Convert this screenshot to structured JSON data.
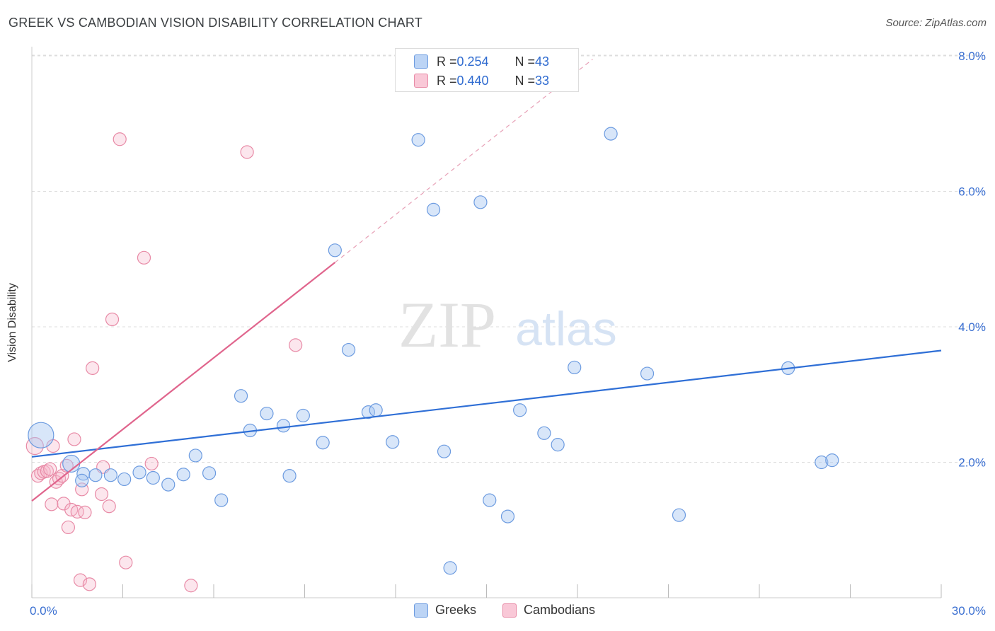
{
  "header": {
    "title": "GREEK VS CAMBODIAN VISION DISABILITY CORRELATION CHART",
    "source": "Source: ZipAtlas.com"
  },
  "watermark": {
    "zip": "ZIP",
    "atlas": "atlas"
  },
  "legend_top": {
    "rows": [
      {
        "r_label": "R = ",
        "r_value": "0.254",
        "n_label": "N = ",
        "n_value": "43"
      },
      {
        "r_label": "R = ",
        "r_value": "0.440",
        "n_label": "N = ",
        "n_value": "33"
      }
    ]
  },
  "legend_bottom": {
    "items": [
      "Greeks",
      "Cambodians"
    ]
  },
  "colors": {
    "greeks_fill": "#a9c8f2",
    "greeks_stroke": "#6c9be0",
    "greeks_line": "#2f6fd6",
    "cambodians_fill": "#f7b8cb",
    "cambodians_stroke": "#e88aa6",
    "cambodians_line": "#e0658d",
    "tick_text": "#3a6fd1",
    "grid": "#dddddd"
  },
  "chart_data": {
    "type": "scatter",
    "title": "GREEK VS CAMBODIAN VISION DISABILITY CORRELATION CHART",
    "xlabel": "",
    "ylabel": "Vision Disability",
    "xlim": [
      0,
      30
    ],
    "ylim": [
      0,
      8.4
    ],
    "x_ticks": [
      0,
      3,
      6,
      9,
      12,
      15,
      18,
      21,
      24,
      27,
      30
    ],
    "x_tick_labels": {
      "0": "0.0%",
      "30": "30.0%"
    },
    "y_ticks": [
      2,
      4,
      6,
      8
    ],
    "y_tick_labels": [
      "2.0%",
      "4.0%",
      "6.0%",
      "8.0%"
    ],
    "grid": true,
    "legend_position": "top-center",
    "series": [
      {
        "name": "Greeks",
        "r": 0.254,
        "n": 43,
        "trend": {
          "x": [
            0,
            30
          ],
          "y": [
            2.08,
            3.65
          ]
        },
        "points": [
          [
            0.3,
            2.4,
            18
          ],
          [
            1.3,
            1.98,
            12
          ],
          [
            1.7,
            1.83,
            9
          ],
          [
            1.65,
            1.73,
            9
          ],
          [
            2.1,
            1.81,
            9
          ],
          [
            2.6,
            1.81,
            9
          ],
          [
            3.05,
            1.75,
            9
          ],
          [
            3.55,
            1.85,
            9
          ],
          [
            4.0,
            1.77,
            9
          ],
          [
            4.5,
            1.67,
            9
          ],
          [
            5.0,
            1.82,
            9
          ],
          [
            5.4,
            2.1,
            9
          ],
          [
            5.85,
            1.84,
            9
          ],
          [
            6.25,
            1.44,
            9
          ],
          [
            6.9,
            2.98,
            9
          ],
          [
            7.2,
            2.47,
            9
          ],
          [
            7.75,
            2.72,
            9
          ],
          [
            8.3,
            2.54,
            9
          ],
          [
            8.5,
            1.8,
            9
          ],
          [
            8.95,
            2.69,
            9
          ],
          [
            9.6,
            2.29,
            9
          ],
          [
            10.0,
            5.13,
            9
          ],
          [
            10.45,
            3.66,
            9
          ],
          [
            11.1,
            2.74,
            9
          ],
          [
            11.35,
            2.77,
            9
          ],
          [
            11.9,
            2.3,
            9
          ],
          [
            12.75,
            6.76,
            9
          ],
          [
            13.25,
            5.73,
            9
          ],
          [
            13.6,
            2.16,
            9
          ],
          [
            13.8,
            0.44,
            9
          ],
          [
            14.8,
            5.84,
            9
          ],
          [
            15.1,
            1.44,
            9
          ],
          [
            15.7,
            1.2,
            9
          ],
          [
            16.1,
            2.77,
            9
          ],
          [
            16.9,
            2.43,
            9
          ],
          [
            17.35,
            2.26,
            9
          ],
          [
            17.9,
            3.4,
            9
          ],
          [
            19.1,
            6.85,
            9
          ],
          [
            20.3,
            3.31,
            9
          ],
          [
            21.35,
            1.22,
            9
          ],
          [
            24.95,
            3.39,
            9
          ],
          [
            26.05,
            2.0,
            9
          ],
          [
            26.4,
            2.03,
            9
          ]
        ]
      },
      {
        "name": "Cambodians",
        "r": 0.44,
        "n": 33,
        "trend": {
          "x": [
            0,
            10
          ],
          "y": [
            1.43,
            4.95
          ],
          "dashed_to": {
            "x": 18.5,
            "y": 7.95
          }
        },
        "points": [
          [
            0.1,
            2.24,
            12
          ],
          [
            0.2,
            1.8,
            9
          ],
          [
            0.3,
            1.84,
            9
          ],
          [
            0.4,
            1.86,
            9
          ],
          [
            0.5,
            1.87,
            9
          ],
          [
            0.6,
            1.9,
            9
          ],
          [
            0.65,
            1.38,
            9
          ],
          [
            0.7,
            2.24,
            9
          ],
          [
            0.8,
            1.71,
            9
          ],
          [
            0.9,
            1.76,
            9
          ],
          [
            1.0,
            1.8,
            9
          ],
          [
            1.05,
            1.39,
            9
          ],
          [
            1.15,
            1.95,
            9
          ],
          [
            1.2,
            1.04,
            9
          ],
          [
            1.3,
            1.3,
            9
          ],
          [
            1.4,
            2.34,
            9
          ],
          [
            1.5,
            1.27,
            9
          ],
          [
            1.6,
            0.26,
            9
          ],
          [
            1.65,
            1.6,
            9
          ],
          [
            1.75,
            1.26,
            9
          ],
          [
            1.9,
            0.2,
            9
          ],
          [
            2.0,
            3.39,
            9
          ],
          [
            2.3,
            1.53,
            9
          ],
          [
            2.35,
            1.93,
            9
          ],
          [
            2.55,
            1.35,
            9
          ],
          [
            2.65,
            4.11,
            9
          ],
          [
            2.9,
            6.77,
            9
          ],
          [
            3.1,
            0.52,
            9
          ],
          [
            3.7,
            5.02,
            9
          ],
          [
            3.95,
            1.98,
            9
          ],
          [
            5.25,
            0.18,
            9
          ],
          [
            7.1,
            6.58,
            9
          ],
          [
            8.7,
            3.73,
            9
          ]
        ]
      }
    ]
  }
}
